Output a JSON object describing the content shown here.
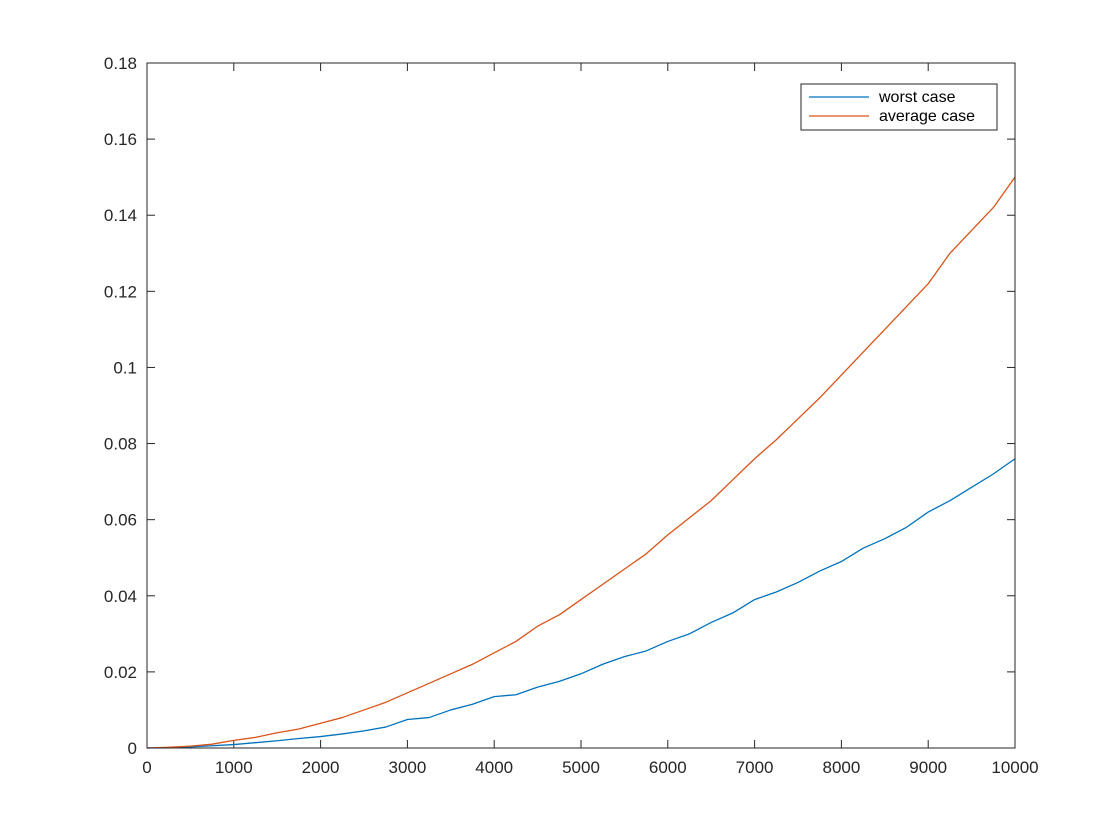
{
  "chart_data": {
    "type": "line",
    "title": "",
    "xlabel": "",
    "ylabel": "",
    "xlim": [
      0,
      10000
    ],
    "ylim": [
      0,
      0.18
    ],
    "xticks": [
      0,
      1000,
      2000,
      3000,
      4000,
      5000,
      6000,
      7000,
      8000,
      9000,
      10000
    ],
    "xtick_labels": [
      "0",
      "1000",
      "2000",
      "3000",
      "4000",
      "5000",
      "6000",
      "7000",
      "8000",
      "9000",
      "10000"
    ],
    "yticks": [
      0,
      0.02,
      0.04,
      0.06,
      0.08,
      0.1,
      0.12,
      0.14,
      0.16,
      0.18
    ],
    "ytick_labels": [
      "0",
      "0.02",
      "0.04",
      "0.06",
      "0.08",
      "0.1",
      "0.12",
      "0.14",
      "0.16",
      "0.18"
    ],
    "grid": false,
    "legend_position": "top-right",
    "x": [
      0,
      250,
      500,
      750,
      1000,
      1250,
      1500,
      1750,
      2000,
      2250,
      2500,
      2750,
      3000,
      3250,
      3500,
      3750,
      4000,
      4250,
      4500,
      4750,
      5000,
      5250,
      5500,
      5750,
      6000,
      6250,
      6500,
      6750,
      7000,
      7250,
      7500,
      7750,
      8000,
      8250,
      8500,
      8750,
      9000,
      9250,
      9500,
      9750,
      10000
    ],
    "series": [
      {
        "name": "worst case",
        "color": "#0072BD",
        "values": [
          0,
          0.0001,
          0.0003,
          0.0006,
          0.0009,
          0.0014,
          0.0019,
          0.0025,
          0.003,
          0.0037,
          0.0045,
          0.0055,
          0.0075,
          0.008,
          0.01,
          0.0115,
          0.0135,
          0.014,
          0.016,
          0.0175,
          0.0195,
          0.022,
          0.024,
          0.0255,
          0.028,
          0.03,
          0.033,
          0.0355,
          0.039,
          0.041,
          0.0435,
          0.0465,
          0.049,
          0.0525,
          0.055,
          0.058,
          0.062,
          0.065,
          0.0685,
          0.072,
          0.076
        ]
      },
      {
        "name": "average case",
        "color": "#D95319",
        "values": [
          0,
          0.0002,
          0.0005,
          0.001,
          0.002,
          0.0028,
          0.004,
          0.005,
          0.0065,
          0.008,
          0.01,
          0.012,
          0.0145,
          0.017,
          0.0195,
          0.022,
          0.025,
          0.028,
          0.032,
          0.035,
          0.039,
          0.043,
          0.047,
          0.051,
          0.056,
          0.0605,
          0.065,
          0.0705,
          0.076,
          0.081,
          0.0865,
          0.092,
          0.098,
          0.104,
          0.11,
          0.116,
          0.122,
          0.13,
          0.136,
          0.142,
          0.15
        ]
      }
    ]
  }
}
